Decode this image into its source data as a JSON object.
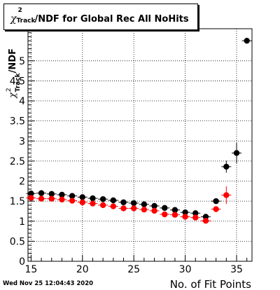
{
  "title": {
    "symbol": "χ",
    "sup": "2",
    "sub": "Track",
    "rest": "/NDF for Global Rec All NoHits"
  },
  "timestamp": "Wed Nov 25 12:04:43 2020",
  "chart_data": {
    "type": "scatter",
    "xlabel": "No. of Fit Points",
    "ylabel": {
      "symbol": "χ",
      "sup": "2",
      "sub": "Track",
      "rest": "/NDF"
    },
    "xlim": [
      14.7,
      36.5
    ],
    "ylim": [
      0,
      5.8
    ],
    "x_ticks": [
      15,
      20,
      25,
      30,
      35
    ],
    "y_ticks": [
      0,
      0.5,
      1,
      1.5,
      2,
      2.5,
      3,
      3.5,
      4,
      4.5,
      5
    ],
    "x_tick_labels": [
      "15",
      "20",
      "25",
      "30",
      "35"
    ],
    "y_tick_labels": [
      "0",
      "0.5",
      "1",
      "1.5",
      "2",
      "2.5",
      "3",
      "3.5",
      "4",
      "4.5",
      "5"
    ],
    "grid": true,
    "series": [
      {
        "color": "#000000",
        "points": [
          {
            "x": 15,
            "y": 1.69,
            "err": 0.03
          },
          {
            "x": 16,
            "y": 1.7,
            "err": 0.02
          },
          {
            "x": 17,
            "y": 1.68,
            "err": 0.02
          },
          {
            "x": 18,
            "y": 1.66,
            "err": 0.02
          },
          {
            "x": 19,
            "y": 1.63,
            "err": 0.02
          },
          {
            "x": 20,
            "y": 1.6,
            "err": 0.02
          },
          {
            "x": 21,
            "y": 1.57,
            "err": 0.02
          },
          {
            "x": 22,
            "y": 1.55,
            "err": 0.02
          },
          {
            "x": 23,
            "y": 1.52,
            "err": 0.02
          },
          {
            "x": 24,
            "y": 1.47,
            "err": 0.02
          },
          {
            "x": 25,
            "y": 1.45,
            "err": 0.02
          },
          {
            "x": 26,
            "y": 1.42,
            "err": 0.02
          },
          {
            "x": 27,
            "y": 1.38,
            "err": 0.02
          },
          {
            "x": 28,
            "y": 1.33,
            "err": 0.03
          },
          {
            "x": 29,
            "y": 1.28,
            "err": 0.03
          },
          {
            "x": 30,
            "y": 1.22,
            "err": 0.03
          },
          {
            "x": 31,
            "y": 1.2,
            "err": 0.04
          },
          {
            "x": 32,
            "y": 1.11,
            "err": 0.04
          },
          {
            "x": 33,
            "y": 1.5,
            "err": 0.05
          },
          {
            "x": 34,
            "y": 2.36,
            "err": 0.15
          },
          {
            "x": 35,
            "y": 2.7,
            "err": 0.25
          },
          {
            "x": 36,
            "y": 5.5,
            "err": 0.04
          }
        ]
      },
      {
        "color": "#ff0000",
        "points": [
          {
            "x": 15,
            "y": 1.58,
            "err": 0.03
          },
          {
            "x": 16,
            "y": 1.56,
            "err": 0.02
          },
          {
            "x": 17,
            "y": 1.56,
            "err": 0.02
          },
          {
            "x": 18,
            "y": 1.54,
            "err": 0.02
          },
          {
            "x": 19,
            "y": 1.51,
            "err": 0.02
          },
          {
            "x": 20,
            "y": 1.47,
            "err": 0.02
          },
          {
            "x": 21,
            "y": 1.44,
            "err": 0.02
          },
          {
            "x": 22,
            "y": 1.4,
            "err": 0.02
          },
          {
            "x": 23,
            "y": 1.37,
            "err": 0.02
          },
          {
            "x": 24,
            "y": 1.32,
            "err": 0.02
          },
          {
            "x": 25,
            "y": 1.32,
            "err": 0.02
          },
          {
            "x": 26,
            "y": 1.29,
            "err": 0.02
          },
          {
            "x": 27,
            "y": 1.26,
            "err": 0.02
          },
          {
            "x": 28,
            "y": 1.17,
            "err": 0.03
          },
          {
            "x": 29,
            "y": 1.16,
            "err": 0.03
          },
          {
            "x": 30,
            "y": 1.11,
            "err": 0.03
          },
          {
            "x": 31,
            "y": 1.09,
            "err": 0.04
          },
          {
            "x": 32,
            "y": 1.01,
            "err": 0.04
          },
          {
            "x": 33,
            "y": 1.3,
            "err": 0.04
          },
          {
            "x": 34,
            "y": 1.65,
            "err": 0.22
          }
        ]
      }
    ]
  }
}
